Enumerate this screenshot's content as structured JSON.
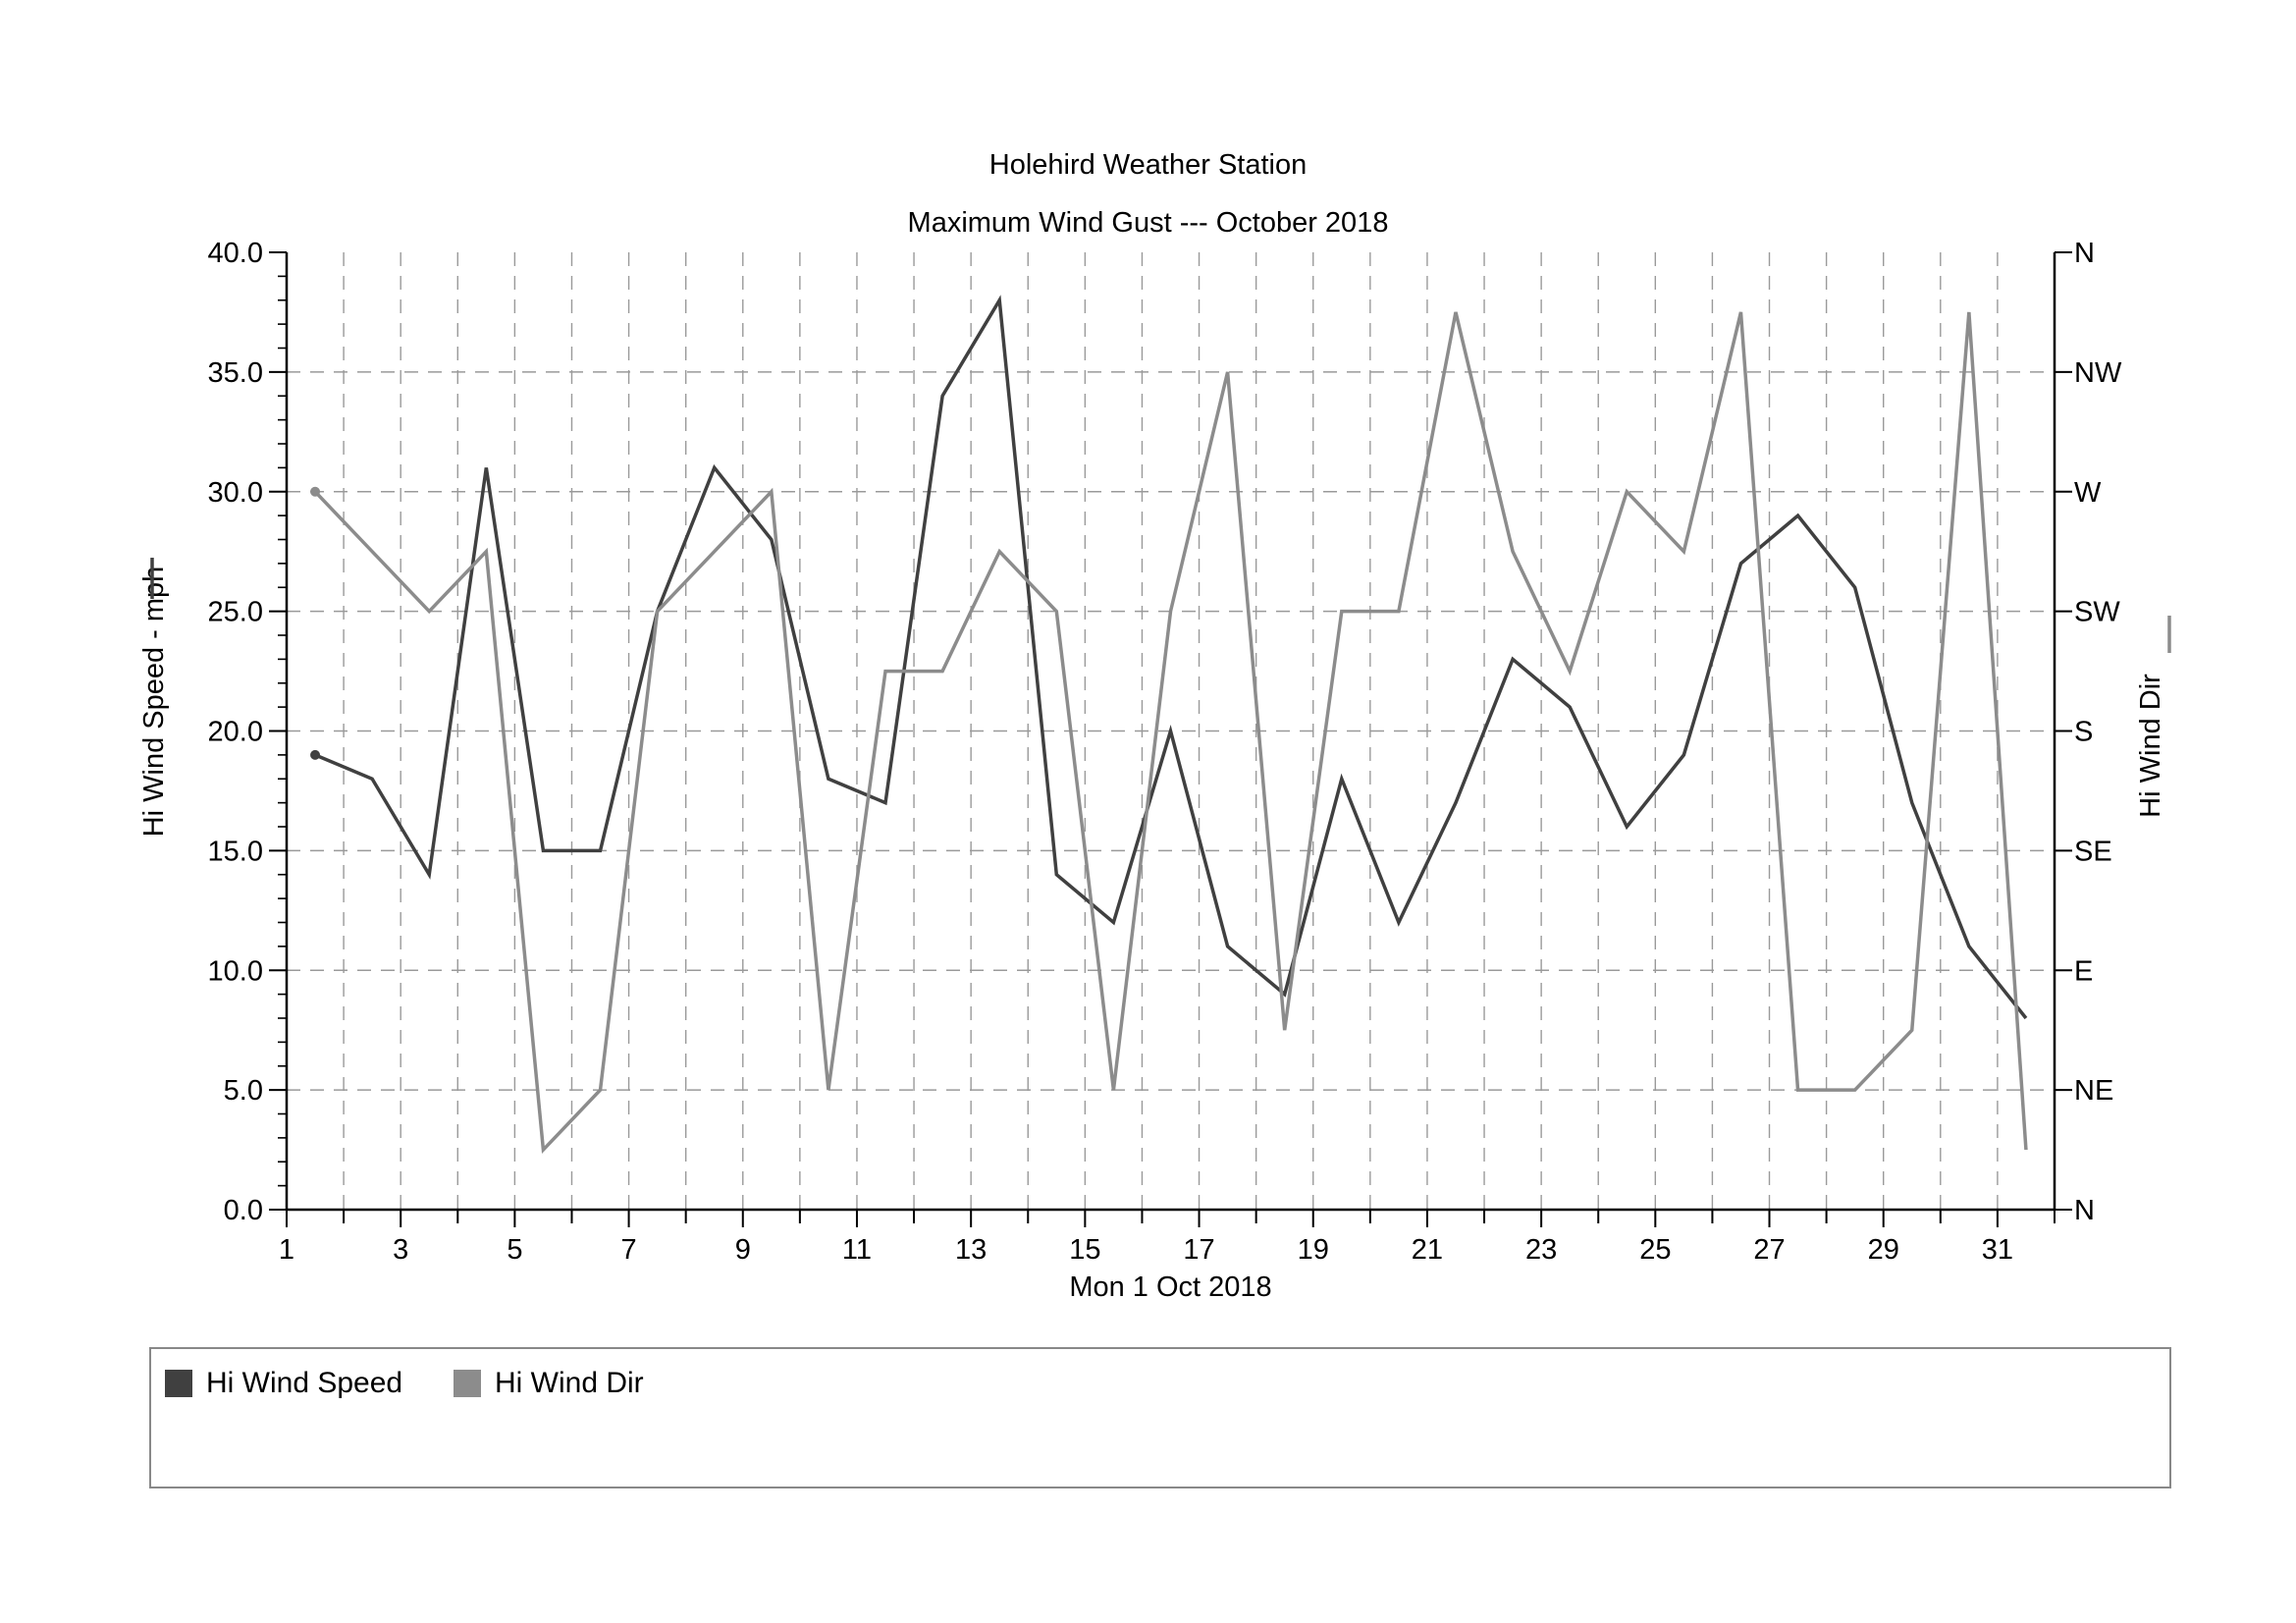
{
  "chart_data": {
    "type": "line",
    "title": "Holehird Weather Station",
    "subtitle": "Maximum Wind Gust --- October 2018",
    "xlabel": "Mon 1 Oct 2018",
    "ylabel": "Hi Wind Speed - mph",
    "y2label": "Hi Wind Dir",
    "xlim": [
      1,
      32
    ],
    "ylim": [
      0,
      40
    ],
    "x_ticks": [
      1,
      3,
      5,
      7,
      9,
      11,
      13,
      15,
      17,
      19,
      21,
      23,
      25,
      27,
      29,
      31
    ],
    "y_ticks": [
      "0.0",
      "5.0",
      "10.0",
      "15.0",
      "20.0",
      "25.0",
      "30.0",
      "35.0",
      "40.0"
    ],
    "y2_ticks": [
      "N",
      "NE",
      "E",
      "SE",
      "S",
      "SW",
      "W",
      "NW",
      "N"
    ],
    "grid": true,
    "legend": "bottom",
    "x": [
      1.5,
      2.5,
      3.5,
      4.5,
      5.5,
      6.5,
      7.5,
      8.5,
      9.5,
      10.5,
      11.5,
      12.5,
      13.5,
      14.5,
      15.5,
      16.5,
      17.5,
      18.5,
      19.5,
      20.5,
      21.5,
      22.5,
      23.5,
      24.5,
      25.5,
      26.5,
      27.5,
      28.5,
      29.5,
      30.5,
      31.5
    ],
    "series": [
      {
        "name": "Hi Wind Speed",
        "color": "#404040",
        "axis": "left",
        "values": [
          19,
          18,
          14,
          31,
          15,
          15,
          25,
          31,
          28,
          18,
          17,
          34,
          38,
          14,
          12,
          20,
          11,
          9,
          18,
          12,
          17,
          23,
          21,
          16,
          19,
          27,
          29,
          26,
          17,
          11,
          8
        ]
      },
      {
        "name": "Hi Wind Dir",
        "color": "#8c8c8c",
        "axis": "right",
        "values": [
          30,
          27.5,
          25,
          27.5,
          2.5,
          5,
          25,
          27.5,
          30,
          5,
          22.5,
          22.5,
          27.5,
          25,
          5,
          25,
          35,
          7.5,
          25,
          25,
          37.5,
          27.5,
          22.5,
          30,
          27.5,
          37.5,
          5,
          5,
          7.5,
          37.5,
          2.5
        ]
      }
    ]
  }
}
